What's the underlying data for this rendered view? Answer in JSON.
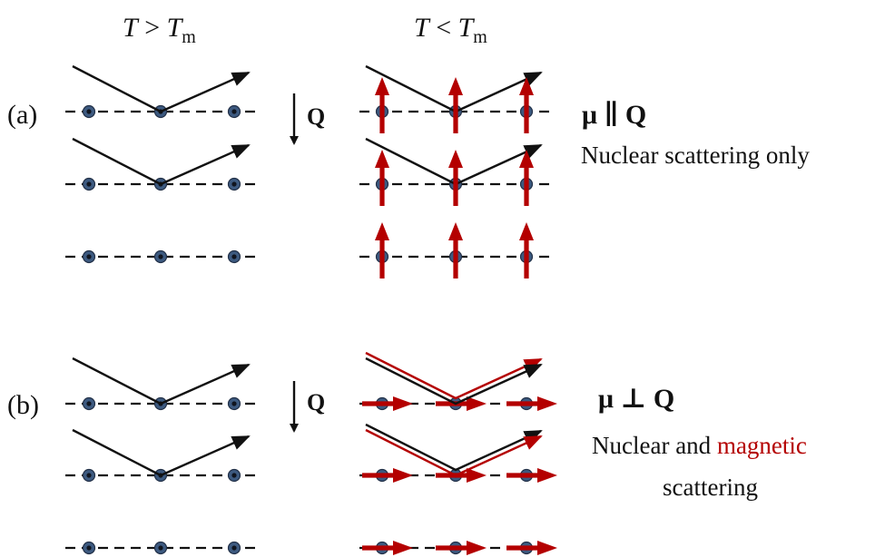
{
  "header": {
    "high_temp": {
      "T": "T",
      "relation": " > ",
      "Tm": "T",
      "sub": "m"
    },
    "low_temp": {
      "T": "T",
      "relation": " < ",
      "Tm": "T",
      "sub": "m"
    }
  },
  "panels": [
    {
      "id": "a",
      "label": "(a)",
      "q_label": "Q",
      "condition": {
        "mu": "μ",
        "relation": " ∥ ",
        "q": "Q"
      },
      "caption_lines": [
        [
          {
            "text": "Nuclear scattering only",
            "color": "#111111"
          }
        ]
      ],
      "spin_orientation": "parallel"
    },
    {
      "id": "b",
      "label": "(b)",
      "q_label": "Q",
      "condition": {
        "mu": "μ",
        "relation": " ⊥ ",
        "q": "Q"
      },
      "caption_lines": [
        [
          {
            "text": "Nuclear and ",
            "color": "#111111"
          },
          {
            "text": "magnetic",
            "color": "#b40000"
          }
        ],
        [
          {
            "text": "scattering",
            "color": "#111111"
          }
        ]
      ],
      "spin_orientation": "perpendicular"
    }
  ],
  "colors": {
    "spin": "#b40000",
    "atom": "#3d5a80",
    "text": "#111111",
    "magnetic_highlight": "#b40000"
  }
}
